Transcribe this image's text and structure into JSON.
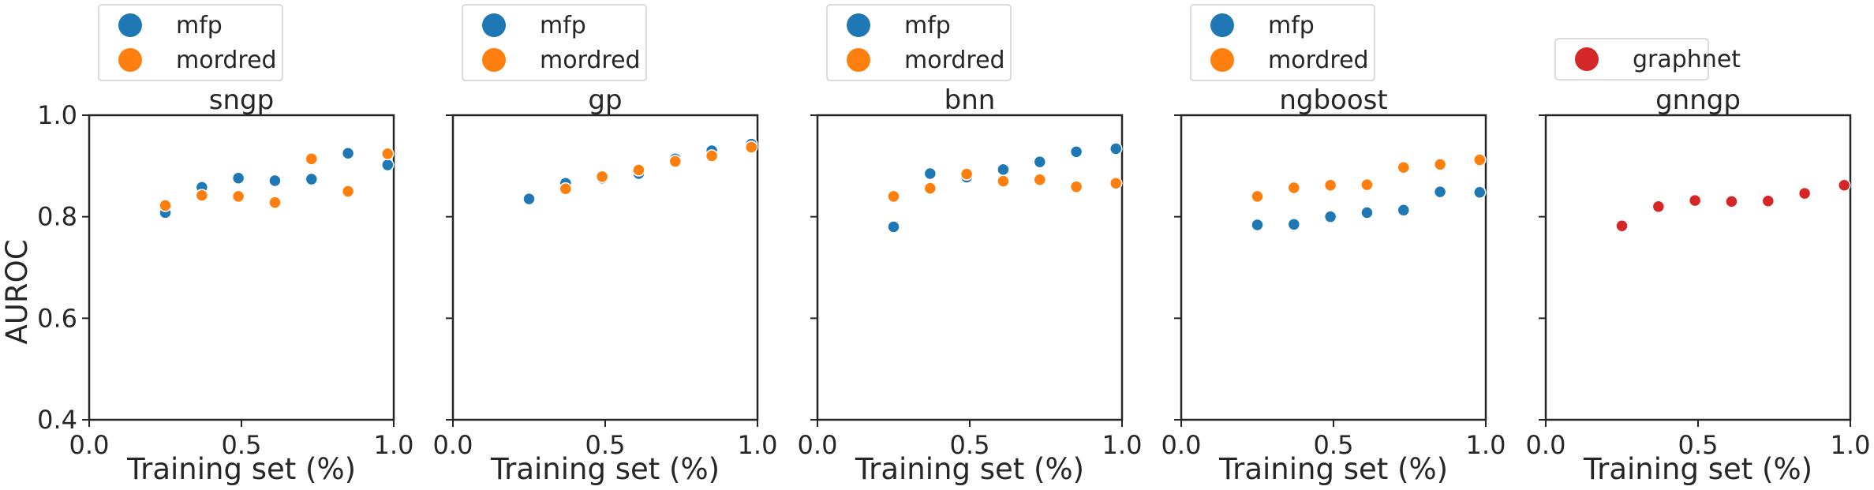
{
  "figure": {
    "ylabel": "AUROC",
    "ytick_labels": [
      "0.4",
      "0.6",
      "0.8",
      "1.0"
    ],
    "xtick_labels": [
      "0.0",
      "0.5",
      "1.0"
    ]
  },
  "colors": {
    "mfp": "#1f77b4",
    "mordred": "#ff7f0e",
    "graphnet": "#d62728"
  },
  "chart_data": [
    {
      "type": "scatter",
      "title": "sngp",
      "xlabel": "Training set (%)",
      "ylabel": "AUROC",
      "xlim": [
        0.0,
        1.0
      ],
      "ylim": [
        0.4,
        1.0
      ],
      "grid": false,
      "legend_position": "above",
      "series": [
        {
          "name": "mfp",
          "color": "#1f77b4",
          "x": [
            0.25,
            0.37,
            0.49,
            0.61,
            0.73,
            0.85,
            0.98
          ],
          "y": [
            0.808,
            0.858,
            0.876,
            0.871,
            0.874,
            0.925,
            0.902
          ]
        },
        {
          "name": "mordred",
          "color": "#ff7f0e",
          "x": [
            0.25,
            0.37,
            0.49,
            0.61,
            0.73,
            0.85,
            0.98
          ],
          "y": [
            0.822,
            0.842,
            0.84,
            0.828,
            0.914,
            0.85,
            0.924
          ]
        }
      ]
    },
    {
      "type": "scatter",
      "title": "gp",
      "xlabel": "Training set (%)",
      "xlim": [
        0.0,
        1.0
      ],
      "ylim": [
        0.4,
        1.0
      ],
      "grid": false,
      "legend_position": "above",
      "series": [
        {
          "name": "mfp",
          "color": "#1f77b4",
          "x": [
            0.25,
            0.37,
            0.49,
            0.61,
            0.73,
            0.85,
            0.98
          ],
          "y": [
            0.835,
            0.866,
            0.876,
            0.885,
            0.914,
            0.93,
            0.943
          ]
        },
        {
          "name": "mordred",
          "color": "#ff7f0e",
          "x": [
            0.37,
            0.49,
            0.61,
            0.73,
            0.85,
            0.98
          ],
          "y": [
            0.855,
            0.879,
            0.892,
            0.909,
            0.92,
            0.937
          ]
        }
      ]
    },
    {
      "type": "scatter",
      "title": "bnn",
      "xlabel": "Training set (%)",
      "xlim": [
        0.0,
        1.0
      ],
      "ylim": [
        0.4,
        1.0
      ],
      "grid": false,
      "legend_position": "above",
      "series": [
        {
          "name": "mfp",
          "color": "#1f77b4",
          "x": [
            0.25,
            0.37,
            0.49,
            0.61,
            0.73,
            0.85,
            0.98
          ],
          "y": [
            0.78,
            0.885,
            0.878,
            0.893,
            0.908,
            0.928,
            0.934
          ]
        },
        {
          "name": "mordred",
          "color": "#ff7f0e",
          "x": [
            0.25,
            0.37,
            0.49,
            0.61,
            0.73,
            0.85,
            0.98
          ],
          "y": [
            0.84,
            0.856,
            0.884,
            0.87,
            0.873,
            0.859,
            0.866
          ]
        }
      ]
    },
    {
      "type": "scatter",
      "title": "ngboost",
      "xlabel": "Training set (%)",
      "xlim": [
        0.0,
        1.0
      ],
      "ylim": [
        0.4,
        1.0
      ],
      "grid": false,
      "legend_position": "above",
      "series": [
        {
          "name": "mfp",
          "color": "#1f77b4",
          "x": [
            0.25,
            0.37,
            0.49,
            0.61,
            0.73,
            0.85,
            0.98
          ],
          "y": [
            0.784,
            0.785,
            0.8,
            0.808,
            0.813,
            0.849,
            0.848
          ]
        },
        {
          "name": "mordred",
          "color": "#ff7f0e",
          "x": [
            0.25,
            0.37,
            0.49,
            0.61,
            0.73,
            0.85,
            0.98
          ],
          "y": [
            0.84,
            0.857,
            0.862,
            0.863,
            0.897,
            0.903,
            0.912
          ]
        }
      ]
    },
    {
      "type": "scatter",
      "title": "gnngp",
      "xlabel": "Training set (%)",
      "xlim": [
        0.0,
        1.0
      ],
      "ylim": [
        0.4,
        1.0
      ],
      "grid": false,
      "legend_position": "above",
      "series": [
        {
          "name": "graphnet",
          "color": "#d62728",
          "x": [
            0.25,
            0.37,
            0.49,
            0.61,
            0.73,
            0.85,
            0.98
          ],
          "y": [
            0.782,
            0.82,
            0.832,
            0.83,
            0.831,
            0.846,
            0.862
          ]
        }
      ]
    }
  ]
}
